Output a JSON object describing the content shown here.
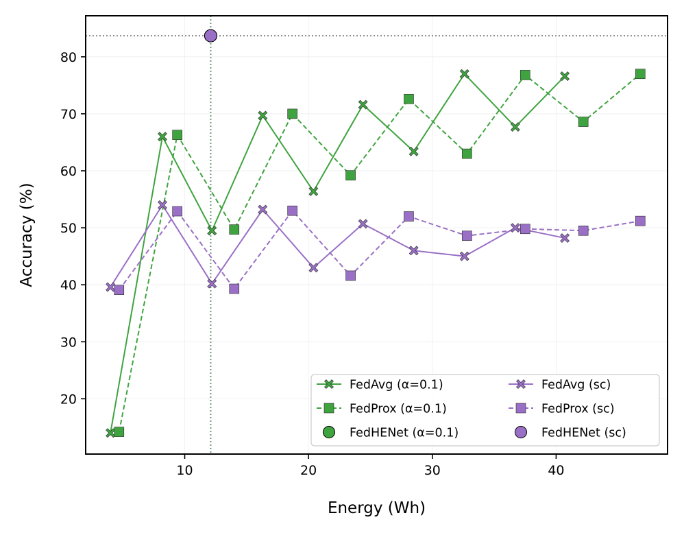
{
  "chart_data": {
    "type": "line",
    "title": "",
    "xlabel": "Energy (Wh)",
    "ylabel": "Accuracy (%)",
    "xlim": [
      2,
      49
    ],
    "ylim": [
      10.3,
      87.2
    ],
    "xticks": [
      10,
      20,
      30,
      40
    ],
    "yticks": [
      20,
      30,
      40,
      50,
      60,
      70,
      80
    ],
    "grid": true,
    "legend_position": "lower-right",
    "colors": {
      "green": "#3fa33f",
      "purple": "#9a6fc6",
      "ref_line_h": "#888888",
      "ref_line_v": "#6a9a7a"
    },
    "reference_lines": {
      "y": 83.7,
      "x": 12.1
    },
    "series": [
      {
        "name": "FedAvg (α=0.1)",
        "color": "#3fa33f",
        "linestyle": "solid",
        "marker": "x",
        "x": [
          4.0,
          8.2,
          12.2,
          16.3,
          20.4,
          24.4,
          28.5,
          32.6,
          36.7,
          40.7
        ],
        "y": [
          14.0,
          66.0,
          49.5,
          69.7,
          56.4,
          71.6,
          63.4,
          77.0,
          67.7,
          76.6
        ]
      },
      {
        "name": "FedProx (α=0.1)",
        "color": "#3fa33f",
        "linestyle": "dashed",
        "marker": "s",
        "x": [
          4.7,
          9.4,
          14.0,
          18.7,
          23.4,
          28.1,
          32.8,
          37.5,
          42.2,
          46.8
        ],
        "y": [
          14.2,
          66.3,
          49.7,
          70.0,
          59.2,
          72.6,
          63.0,
          76.8,
          68.6,
          77.0
        ]
      },
      {
        "name": "FedHENet (α=0.1)",
        "color": "#3fa33f",
        "linestyle": "none",
        "marker": "o",
        "x": [
          12.1
        ],
        "y": [
          83.7
        ]
      },
      {
        "name": "FedAvg (sc)",
        "color": "#9a6fc6",
        "linestyle": "solid",
        "marker": "x",
        "x": [
          4.0,
          8.2,
          12.2,
          16.3,
          20.4,
          24.4,
          28.5,
          32.6,
          36.7,
          40.7
        ],
        "y": [
          39.6,
          54.0,
          40.2,
          53.2,
          43.0,
          50.7,
          46.0,
          45.0,
          50.0,
          48.2
        ]
      },
      {
        "name": "FedProx (sc)",
        "color": "#9a6fc6",
        "linestyle": "dashed",
        "marker": "s",
        "x": [
          4.7,
          9.4,
          14.0,
          18.7,
          23.4,
          28.1,
          32.8,
          37.5,
          42.2,
          46.8
        ],
        "y": [
          39.1,
          52.9,
          39.3,
          53.0,
          41.6,
          52.0,
          48.6,
          49.8,
          49.5,
          51.2
        ]
      },
      {
        "name": "FedHENet (sc)",
        "color": "#9a6fc6",
        "linestyle": "none",
        "marker": "o",
        "x": [
          12.1
        ],
        "y": [
          83.7
        ]
      }
    ]
  }
}
